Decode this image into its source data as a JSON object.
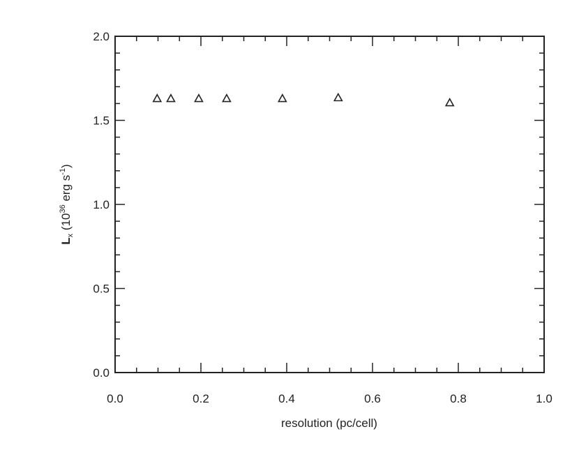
{
  "chart_data": {
    "type": "scatter",
    "title": "",
    "xlabel": "resolution (pc/cell)",
    "ylabel": {
      "main": "L",
      "sub": "x",
      "paren_open": " (10",
      "exp": "36",
      "unit": " erg s",
      "unit_exp": "-1",
      "paren_close": ")"
    },
    "xlim": [
      0.0,
      1.0
    ],
    "ylim": [
      0.0,
      2.0
    ],
    "xticks": [
      0.0,
      0.2,
      0.4,
      0.6,
      0.8,
      1.0
    ],
    "xtick_labels": [
      "0.0",
      "0.2",
      "0.4",
      "0.6",
      "0.8",
      "1.0"
    ],
    "yticks": [
      0.0,
      0.5,
      1.0,
      1.5,
      2.0
    ],
    "ytick_labels": [
      "0.0",
      "0.5",
      "1.0",
      "1.5",
      "2.0"
    ],
    "x_minor_per_major": 4,
    "y_minor_per_major": 5,
    "grid": false,
    "legend": "none",
    "marker": "open-triangle",
    "series": [
      {
        "x": [
          0.098,
          0.13,
          0.195,
          0.26,
          0.39,
          0.52,
          0.78
        ],
        "y": [
          1.63,
          1.63,
          1.63,
          1.63,
          1.63,
          1.635,
          1.605
        ]
      }
    ]
  }
}
